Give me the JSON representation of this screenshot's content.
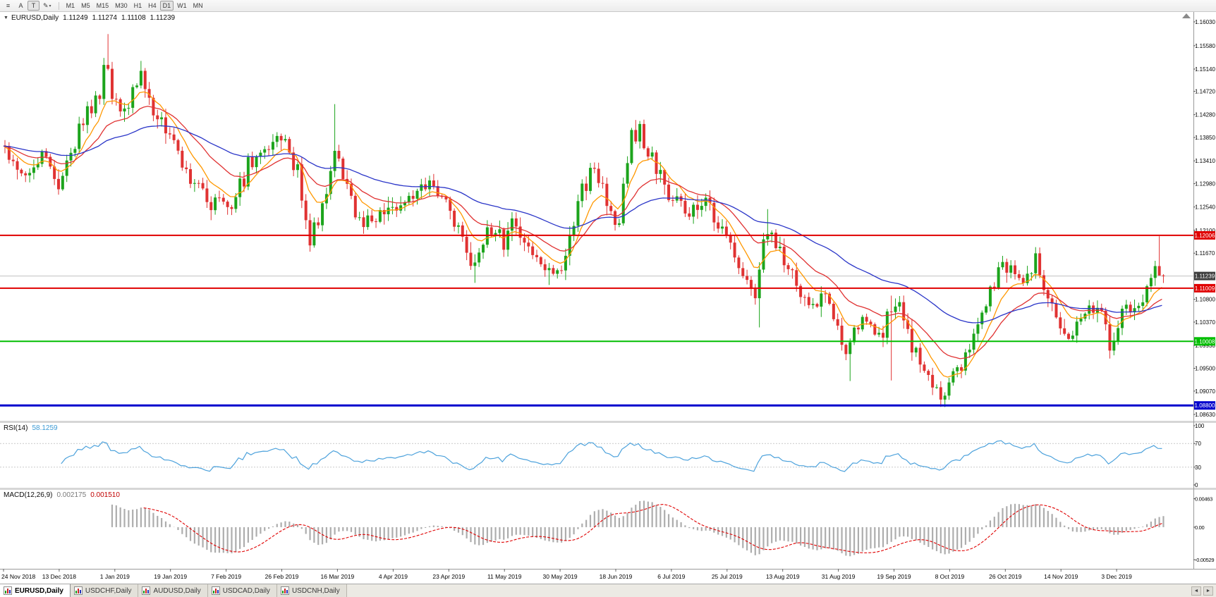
{
  "toolbar": {
    "tools": [
      {
        "name": "chart-list-icon",
        "label": "≡"
      },
      {
        "name": "annotation-tool-button",
        "label": "A"
      },
      {
        "name": "text-tool-button",
        "label": "T",
        "active": true
      },
      {
        "name": "drawing-tool-button",
        "label": "✎",
        "caret": "▾"
      }
    ],
    "timeframes": [
      {
        "label": "M1"
      },
      {
        "label": "M5"
      },
      {
        "label": "M15"
      },
      {
        "label": "M30"
      },
      {
        "label": "H1"
      },
      {
        "label": "H4"
      },
      {
        "label": "D1",
        "active": true
      },
      {
        "label": "W1"
      },
      {
        "label": "MN"
      }
    ]
  },
  "chart": {
    "header": {
      "symbol": "EURUSD,Daily",
      "open": "1.11249",
      "high": "1.11274",
      "low": "1.11108",
      "close": "1.11239"
    }
  },
  "price_axis": {
    "ticks": [
      "1.16030",
      "1.15580",
      "1.15140",
      "1.14720",
      "1.14280",
      "1.13850",
      "1.13410",
      "1.12980",
      "1.12540",
      "1.12100",
      "1.11670",
      "1.10800",
      "1.10370",
      "1.09930",
      "1.09500",
      "1.09070",
      "1.08630"
    ]
  },
  "current_price": {
    "price": 1.11239,
    "label": "1.11239",
    "bg": "#3f3f3f",
    "line_color": "#c0c0c0"
  },
  "rsi_panel": {
    "name": "RSI(14)",
    "value": "58.1259",
    "ticks": [
      "100",
      "70",
      "30",
      "0"
    ]
  },
  "macd_panel": {
    "name": "MACD(12,26,9)",
    "value_macd": "0.002175",
    "value_signal": "0.001510",
    "ticks": [
      "0.00463",
      "0.00",
      "-0.00529"
    ]
  },
  "dates": [
    "24 Nov 2018",
    "13 Dec 2018",
    "1 Jan 2019",
    "19 Jan 2019",
    "7 Feb 2019",
    "26 Feb 2019",
    "16 Mar 2019",
    "4 Apr 2019",
    "23 Apr 2019",
    "11 May 2019",
    "30 May 2019",
    "18 Jun 2019",
    "6 Jul 2019",
    "25 Jul 2019",
    "13 Aug 2019",
    "31 Aug 2019",
    "19 Sep 2019",
    "8 Oct 2019",
    "26 Oct 2019",
    "14 Nov 2019",
    "3 Dec 2019"
  ],
  "tabs": {
    "active": 0,
    "scroll_left": "◄",
    "scroll_right": "►",
    "items": [
      {
        "label": "EURUSD,Daily"
      },
      {
        "label": "USDCHF,Daily"
      },
      {
        "label": "AUDUSD,Daily"
      },
      {
        "label": "USDCAD,Daily"
      },
      {
        "label": "USDCNH,Daily"
      }
    ]
  },
  "chart_data": {
    "type": "candlestick",
    "symbol": "EURUSD",
    "period": "Daily",
    "last_ohlc": {
      "open": 1.11249,
      "high": 1.11274,
      "low": 1.11108,
      "close": 1.11239
    },
    "visible_price_range": [
      1.0851,
      1.16216
    ],
    "candle_count": 282,
    "candles_per_label": 13.5,
    "price_path": [
      [
        0,
        1.137
      ],
      [
        0.15,
        1.1335
      ],
      [
        0.4,
        1.131
      ],
      [
        0.7,
        1.1355
      ],
      [
        1.0,
        1.13
      ],
      [
        1.35,
        1.1395
      ],
      [
        1.6,
        1.1445
      ],
      [
        1.78,
        1.1475
      ],
      [
        1.85,
        1.1545
      ],
      [
        1.98,
        1.1445
      ],
      [
        2.2,
        1.1435
      ],
      [
        2.5,
        1.1495
      ],
      [
        2.75,
        1.143
      ],
      [
        3.0,
        1.139
      ],
      [
        3.4,
        1.13
      ],
      [
        3.75,
        1.1265
      ],
      [
        4.1,
        1.1245
      ],
      [
        4.4,
        1.133
      ],
      [
        4.7,
        1.136
      ],
      [
        5.0,
        1.14
      ],
      [
        5.3,
        1.132
      ],
      [
        5.5,
        1.1195
      ],
      [
        5.75,
        1.125
      ],
      [
        5.95,
        1.137
      ],
      [
        6.15,
        1.129
      ],
      [
        6.35,
        1.124
      ],
      [
        6.6,
        1.1225
      ],
      [
        6.9,
        1.1255
      ],
      [
        7.1,
        1.1235
      ],
      [
        7.45,
        1.1285
      ],
      [
        7.75,
        1.1305
      ],
      [
        8.0,
        1.126
      ],
      [
        8.2,
        1.1205
      ],
      [
        8.45,
        1.113
      ],
      [
        8.7,
        1.1215
      ],
      [
        9.0,
        1.119
      ],
      [
        9.2,
        1.1235
      ],
      [
        9.5,
        1.117
      ],
      [
        9.8,
        1.113
      ],
      [
        10.05,
        1.1145
      ],
      [
        10.35,
        1.127
      ],
      [
        10.6,
        1.133
      ],
      [
        10.8,
        1.128
      ],
      [
        11.05,
        1.1215
      ],
      [
        11.3,
        1.139
      ],
      [
        11.45,
        1.14
      ],
      [
        11.7,
        1.133
      ],
      [
        11.95,
        1.1285
      ],
      [
        12.25,
        1.1235
      ],
      [
        12.55,
        1.127
      ],
      [
        12.85,
        1.1225
      ],
      [
        13.1,
        1.1175
      ],
      [
        13.35,
        1.1115
      ],
      [
        13.52,
        1.1085
      ],
      [
        13.7,
        1.1205
      ],
      [
        14.0,
        1.1165
      ],
      [
        14.3,
        1.11
      ],
      [
        14.55,
        1.107
      ],
      [
        14.8,
        1.1095
      ],
      [
        15.05,
        1.1
      ],
      [
        15.15,
        1.0965
      ],
      [
        15.38,
        1.1035
      ],
      [
        15.58,
        1.104
      ],
      [
        15.78,
        1.1
      ],
      [
        15.93,
        1.106
      ],
      [
        16.08,
        1.107
      ],
      [
        16.28,
        1.101
      ],
      [
        16.52,
        1.095
      ],
      [
        16.75,
        1.0915
      ],
      [
        16.9,
        1.0895
      ],
      [
        17.08,
        1.0965
      ],
      [
        17.25,
        1.0955
      ],
      [
        17.5,
        1.103
      ],
      [
        17.8,
        1.111
      ],
      [
        18.05,
        1.115
      ],
      [
        18.3,
        1.1105
      ],
      [
        18.55,
        1.116
      ],
      [
        18.8,
        1.107
      ],
      [
        19.05,
        1.102
      ],
      [
        19.2,
        1.1
      ],
      [
        19.5,
        1.107
      ],
      [
        19.7,
        1.1055
      ],
      [
        19.88,
        1.1
      ],
      [
        19.98,
        1.0985
      ],
      [
        20.08,
        1.1075
      ],
      [
        20.25,
        1.1065
      ],
      [
        20.4,
        1.106
      ],
      [
        20.52,
        1.1095
      ],
      [
        20.62,
        1.113
      ],
      [
        20.68,
        1.1125
      ],
      [
        20.74,
        1.115
      ],
      [
        20.81,
        1.1124
      ]
    ],
    "extremes": [
      [
        1.85,
        1.158,
        null
      ],
      [
        2.5,
        1.1515,
        null
      ],
      [
        5.5,
        null,
        1.1176
      ],
      [
        5.95,
        1.1448,
        null
      ],
      [
        8.45,
        null,
        1.1111
      ],
      [
        9.8,
        null,
        1.1107
      ],
      [
        13.52,
        null,
        1.1027
      ],
      [
        13.7,
        1.125,
        null
      ],
      [
        15.15,
        null,
        1.0926
      ],
      [
        15.93,
        1.1087,
        1.0927
      ],
      [
        16.9,
        null,
        1.0879
      ],
      [
        20.74,
        1.1199,
        null
      ]
    ],
    "levels": [
      {
        "price": 1.12006,
        "label": "1.12006",
        "color": "#e00000",
        "width": 2
      },
      {
        "price": 1.11009,
        "label": "1.11009",
        "color": "#e00000",
        "width": 2
      },
      {
        "price": 1.10008,
        "label": "1.10008",
        "color": "#00be00",
        "width": 2
      },
      {
        "price": 1.088,
        "label": "1.08800",
        "color": "#0000cd",
        "width": 3
      }
    ],
    "indicators": {
      "moving_averages": [
        {
          "period": 9,
          "color": "#ff9800"
        },
        {
          "period": 21,
          "color": "#e03232"
        },
        {
          "period": 55,
          "color": "#2a35c8"
        }
      ],
      "rsi": {
        "period": 14,
        "current": 58.1259,
        "levels": [
          70,
          30
        ]
      },
      "macd": {
        "fast": 12,
        "slow": 26,
        "signal": 9,
        "current_macd": 0.002175,
        "current_signal": 0.00151,
        "scale": [
          -0.0062,
          0.0055
        ]
      }
    },
    "colors": {
      "bull": "#1ca41c",
      "bear": "#e03232",
      "histogram": "#adadad",
      "signal": "#e00000",
      "rsi": "#4da2dc",
      "current_price_line": "#c0c0c0"
    }
  }
}
